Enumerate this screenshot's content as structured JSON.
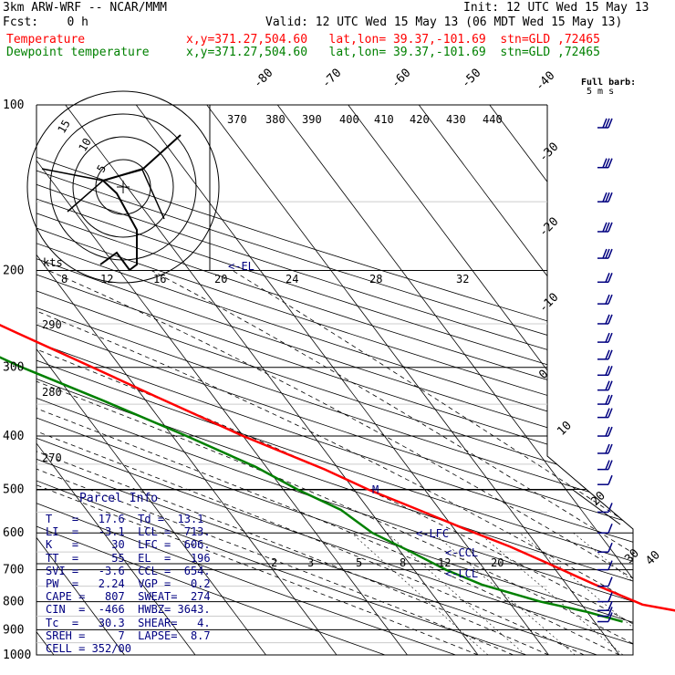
{
  "header": {
    "model": "3km ARW-WRF -- NCAR/MMM",
    "init": "Init: 12 UTC Wed 15 May 13",
    "fcst": "Fcst:    0 h",
    "valid": "Valid: 12 UTC Wed 15 May 13 (06 MDT Wed 15 May 13)",
    "temp_label": "Temperature",
    "temp_info": "x,y=371.27,504.60   lat,lon= 39.37,-101.69  stn=GLD ,72465",
    "dew_label": "Dewpoint temperature",
    "dew_info": "x,y=371.27,504.60   lat,lon= 39.37,-101.69  stn=GLD ,72465"
  },
  "colors": {
    "temperature": "#ff0000",
    "dewpoint": "#008000",
    "grid": "#000000",
    "text_info": "#000080"
  },
  "chart_data": {
    "type": "line",
    "title": "",
    "y_axis": {
      "quantity": "pressure (hPa)",
      "scale": "log",
      "ticks": [
        100,
        200,
        300,
        400,
        500,
        600,
        700,
        800,
        900,
        1000
      ]
    },
    "isotherm_labels": [
      "-80",
      "-70",
      "-60",
      "-50",
      "-40",
      "-30",
      "-20",
      "-10",
      "0",
      "10",
      "20",
      "30",
      "40"
    ],
    "theta_labels": [
      "370",
      "380",
      "390",
      "400",
      "410",
      "420",
      "430",
      "440",
      "290",
      "280",
      "270"
    ],
    "mixing_ratio_labels": [
      "2",
      "3",
      "5",
      "8",
      "12",
      "20"
    ],
    "series": [
      {
        "name": "Temperature",
        "pressure": [
          865,
          835,
          810,
          745,
          680,
          635,
          590,
          545,
          500,
          460,
          400,
          340,
          300,
          260,
          225,
          200,
          185,
          170,
          155,
          140,
          125,
          110,
          100
        ],
        "values": [
          22,
          23.5,
          18.6,
          14,
          9.5,
          6,
          1.5,
          -3,
          -8,
          -12,
          -20,
          -28,
          -34,
          -41,
          -48,
          -52,
          -55,
          -55,
          -53,
          -51,
          -49,
          -46,
          -44
        ]
      },
      {
        "name": "Dewpoint temperature",
        "pressure": [
          870,
          835,
          800,
          745,
          700,
          650,
          600,
          545,
          500,
          455,
          400,
          345,
          300,
          260,
          225,
          200,
          185,
          170,
          155,
          140,
          125,
          110,
          100
        ],
        "values": [
          14,
          10,
          4.5,
          -2,
          -5.5,
          -8.5,
          -12,
          -14,
          -18,
          -21.5,
          -28,
          -36,
          -44,
          -51,
          -56,
          -60,
          -62,
          -63,
          -64,
          -63,
          -63,
          -62,
          -62
        ]
      }
    ],
    "annotations": [
      "<-EL",
      "M",
      "<-LFC",
      "<-CCL",
      "<-LCL"
    ],
    "wind_profile": {
      "title": "Full barb:",
      "subtitle": "5 m s",
      "barb_pressures": [
        110,
        130,
        150,
        170,
        190,
        210,
        230,
        250,
        270,
        290,
        310,
        330,
        350,
        370,
        400,
        430,
        460,
        490,
        550,
        600,
        650,
        700,
        750,
        800,
        830,
        850,
        870
      ],
      "barb_kts": [
        30,
        30,
        30,
        30,
        25,
        20,
        20,
        20,
        15,
        15,
        15,
        20,
        20,
        20,
        15,
        15,
        15,
        10,
        10,
        10,
        10,
        10,
        10,
        10,
        10,
        10,
        10
      ],
      "hodograph_label": "kts",
      "hodograph_rings": [
        "5",
        "10",
        "15"
      ],
      "hodograph_axis": [
        "8",
        "12",
        "16",
        "20",
        "24",
        "28",
        "32"
      ]
    }
  },
  "parcel_info": {
    "title": "Parcel Info",
    "rows": [
      "T   =   17.6  Td =  13.1",
      "LI  =   -3.1  LCL =  713.",
      "K   =     30  LFC =  606.",
      "TT  =     55  EL  =   196",
      "SVI =   -3.6  CCL =  654.",
      "PW  =   2.24  VGP =   0.2",
      "CAPE =   807  SWEAT=  274",
      "CIN  =  -466  HWBZ= 3643.",
      "Tc  =   30.3  SHEAR=   4.",
      "SREH =     7  LAPSE=  8.7",
      "CELL = 352/00"
    ]
  }
}
